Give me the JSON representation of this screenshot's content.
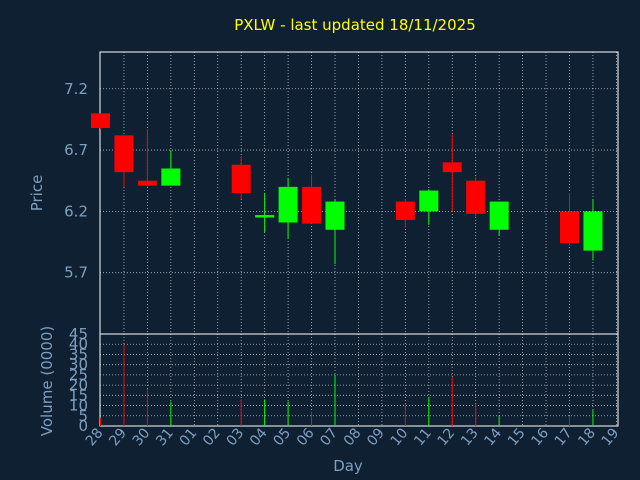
{
  "colors": {
    "background": "#0f2033",
    "panel": "#0f2033",
    "grid": "#ffffff",
    "axis_text": "#7f9fbf",
    "title": "#ffff00",
    "up": "#00ff00",
    "down": "#ff0000"
  },
  "chart_data": {
    "type": "candlestick",
    "title": "PXLW - last updated 18/11/2025",
    "xlabel": "Day",
    "ylabel": "Price",
    "volume_label": "Volume (0000)",
    "price_ylim": [
      5.2,
      7.5
    ],
    "price_ticks": [
      "7.2",
      "6.7",
      "6.2",
      "5.7"
    ],
    "volume_ylim": [
      0,
      45
    ],
    "volume_ticks": [
      "45",
      "40",
      "35",
      "30",
      "25",
      "20",
      "15",
      "10",
      "5",
      "0"
    ],
    "x_ticks": [
      "28",
      "29",
      "30",
      "31",
      "01",
      "02",
      "03",
      "04",
      "05",
      "06",
      "07",
      "08",
      "09",
      "10",
      "11",
      "12",
      "13",
      "14",
      "15",
      "16",
      "17",
      "18",
      "19"
    ],
    "candles": [
      {
        "x": 0,
        "open": 7.0,
        "close": 6.88,
        "high": 7.0,
        "low": 6.87,
        "volume": 4
      },
      {
        "x": 1,
        "open": 6.82,
        "close": 6.52,
        "high": 6.82,
        "low": 6.4,
        "volume": 40
      },
      {
        "x": 2,
        "open": 6.45,
        "close": 6.41,
        "high": 6.87,
        "low": 6.4,
        "volume": 18
      },
      {
        "x": 3,
        "open": 6.41,
        "close": 6.55,
        "high": 6.7,
        "low": 6.41,
        "volume": 12
      },
      {
        "x": 6,
        "open": 6.58,
        "close": 6.35,
        "high": 6.65,
        "low": 6.3,
        "volume": 13
      },
      {
        "x": 7,
        "open": 6.15,
        "close": 6.17,
        "high": 6.35,
        "low": 6.03,
        "volume": 13
      },
      {
        "x": 8,
        "open": 6.11,
        "close": 6.4,
        "high": 6.47,
        "low": 5.98,
        "volume": 12
      },
      {
        "x": 9,
        "open": 6.4,
        "close": 6.1,
        "high": 6.5,
        "low": 6.1,
        "volume": 7
      },
      {
        "x": 10,
        "open": 6.05,
        "close": 6.28,
        "high": 6.3,
        "low": 5.77,
        "volume": 25
      },
      {
        "x": 13,
        "open": 6.28,
        "close": 6.13,
        "high": 6.3,
        "low": 6.07,
        "volume": 11
      },
      {
        "x": 14,
        "open": 6.2,
        "close": 6.37,
        "high": 6.38,
        "low": 6.09,
        "volume": 14
      },
      {
        "x": 15,
        "open": 6.6,
        "close": 6.52,
        "high": 6.83,
        "low": 6.2,
        "volume": 24
      },
      {
        "x": 16,
        "open": 6.45,
        "close": 6.18,
        "high": 6.48,
        "low": 6.16,
        "volume": 11
      },
      {
        "x": 17,
        "open": 6.05,
        "close": 6.28,
        "high": 6.28,
        "low": 6.0,
        "volume": 5
      },
      {
        "x": 20,
        "open": 6.2,
        "close": 5.94,
        "high": 6.35,
        "low": 5.92,
        "volume": 5
      },
      {
        "x": 21,
        "open": 5.88,
        "close": 6.2,
        "high": 6.3,
        "low": 5.8,
        "volume": 8
      }
    ]
  }
}
